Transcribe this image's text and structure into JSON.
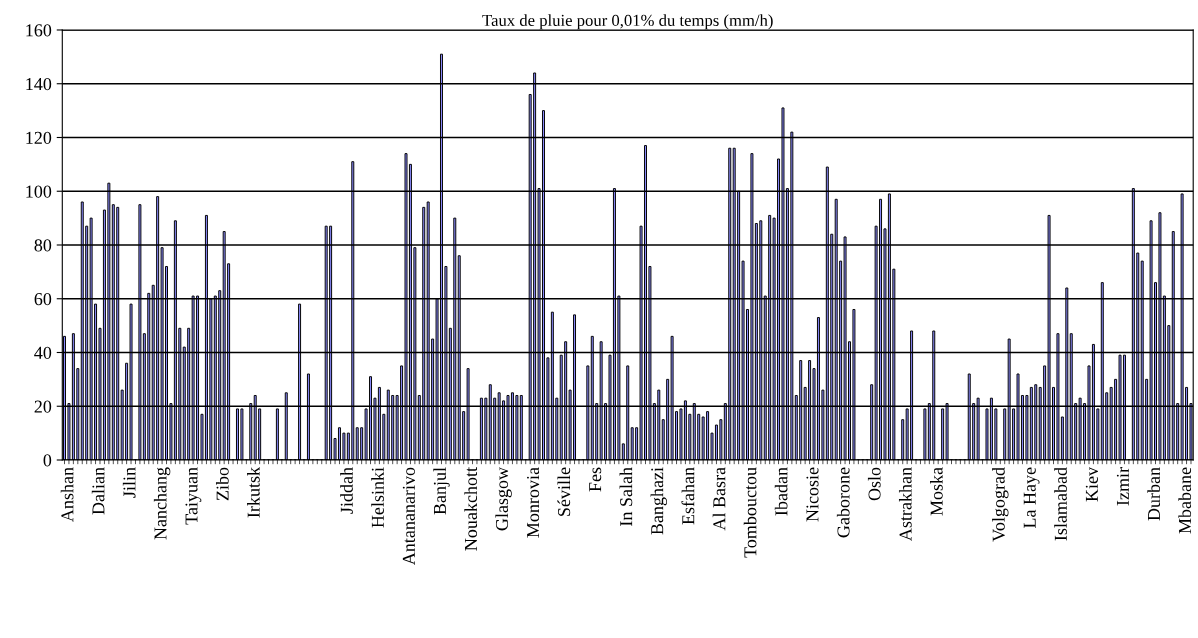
{
  "chart_data": {
    "type": "bar",
    "title": "Taux de pluie pour 0,01% du temps (mm/h)",
    "categories": [
      null,
      "Anshan",
      null,
      null,
      null,
      null,
      null,
      null,
      "Dalian",
      null,
      null,
      null,
      null,
      null,
      null,
      "Jilin",
      null,
      null,
      null,
      null,
      null,
      null,
      "Nanchang",
      null,
      null,
      null,
      null,
      null,
      null,
      "Taiyuan",
      null,
      null,
      null,
      null,
      null,
      null,
      "Zibo",
      null,
      null,
      null,
      null,
      null,
      null,
      "Irkutsk",
      null,
      null,
      null,
      null,
      null,
      null,
      null,
      null,
      null,
      null,
      null,
      null,
      null,
      null,
      null,
      null,
      null,
      null,
      null,
      null,
      "Jiddah",
      null,
      null,
      null,
      null,
      null,
      null,
      "Helsinki",
      null,
      null,
      null,
      null,
      null,
      null,
      "Antananarivo",
      null,
      null,
      null,
      null,
      null,
      null,
      "Banjul",
      null,
      null,
      null,
      null,
      null,
      null,
      "Nouakchott",
      null,
      null,
      null,
      null,
      null,
      null,
      "Glasgow",
      null,
      null,
      null,
      null,
      null,
      null,
      "Monrovia",
      null,
      null,
      null,
      null,
      null,
      null,
      "Séville",
      null,
      null,
      null,
      null,
      null,
      null,
      "Fes",
      null,
      null,
      null,
      null,
      null,
      null,
      "In Salah",
      null,
      null,
      null,
      null,
      null,
      null,
      "Banghazi",
      null,
      null,
      null,
      null,
      null,
      null,
      "Esfahan",
      null,
      null,
      null,
      null,
      null,
      null,
      "Al Basra",
      null,
      null,
      null,
      null,
      null,
      null,
      "Tombouctou",
      null,
      null,
      null,
      null,
      null,
      null,
      "Ibadan",
      null,
      null,
      null,
      null,
      null,
      null,
      "Nicosie",
      null,
      null,
      null,
      null,
      null,
      null,
      "Gaborone",
      null,
      null,
      null,
      null,
      null,
      null,
      "Oslo",
      null,
      null,
      null,
      null,
      null,
      null,
      "Astrakhan",
      null,
      null,
      null,
      null,
      null,
      null,
      "Moska",
      null,
      null,
      null,
      null,
      null,
      null,
      null,
      null,
      null,
      null,
      null,
      null,
      null,
      "Volgograd",
      null,
      null,
      null,
      null,
      null,
      null,
      "La Haye",
      null,
      null,
      null,
      null,
      null,
      null,
      "Islamabad",
      null,
      null,
      null,
      null,
      null,
      null,
      "Kiev",
      null,
      null,
      null,
      null,
      null,
      null,
      "Izmir",
      null,
      null,
      null,
      null,
      null,
      null,
      "Durban",
      null,
      null,
      null,
      null,
      null,
      null,
      "Mbabane",
      null
    ],
    "values": [
      46,
      21,
      47,
      34,
      96,
      87,
      90,
      58,
      49,
      93,
      103,
      95,
      94,
      26,
      36,
      58,
      0,
      95,
      47,
      62,
      65,
      98,
      79,
      72,
      21,
      89,
      49,
      42,
      49,
      61,
      61,
      17,
      91,
      60,
      61,
      63,
      85,
      73,
      0,
      19,
      19,
      0,
      21,
      24,
      19,
      0,
      0,
      0,
      19,
      0,
      25,
      0,
      0,
      58,
      0,
      32,
      0,
      0,
      0,
      87,
      87,
      8,
      12,
      10,
      10,
      111,
      12,
      12,
      19,
      31,
      23,
      27,
      17,
      26,
      24,
      24,
      35,
      114,
      110,
      79,
      24,
      94,
      96,
      45,
      60,
      151,
      72,
      49,
      90,
      76,
      18,
      34,
      0,
      0,
      23,
      23,
      28,
      23,
      25,
      22,
      24,
      25,
      24,
      24,
      0,
      136,
      144,
      101,
      130,
      38,
      55,
      23,
      39,
      44,
      26,
      54,
      0,
      0,
      35,
      46,
      21,
      44,
      21,
      39,
      101,
      61,
      6,
      35,
      12,
      12,
      87,
      117,
      72,
      21,
      26,
      15,
      30,
      46,
      18,
      19,
      22,
      17,
      21,
      17,
      16,
      18,
      10,
      13,
      15,
      21,
      116,
      116,
      100,
      74,
      56,
      114,
      88,
      89,
      61,
      91,
      90,
      112,
      131,
      101,
      122,
      24,
      37,
      27,
      37,
      34,
      53,
      26,
      109,
      84,
      97,
      74,
      83,
      44,
      56,
      0,
      0,
      0,
      28,
      87,
      97,
      86,
      99,
      71,
      0,
      15,
      19,
      48,
      0,
      0,
      19,
      21,
      48,
      0,
      19,
      21,
      0,
      0,
      0,
      0,
      32,
      21,
      23,
      0,
      19,
      23,
      19,
      0,
      19,
      45,
      19,
      32,
      24,
      24,
      27,
      28,
      27,
      35,
      91,
      27,
      47,
      16,
      64,
      47,
      21,
      23,
      21,
      35,
      43,
      19,
      66,
      25,
      27,
      30,
      39,
      39,
      0,
      101,
      77,
      74,
      30,
      89,
      66,
      92,
      61,
      50,
      85,
      21,
      99,
      27,
      21
    ],
    "color": "#8c8cff",
    "ylim": [
      0,
      160
    ],
    "yticks": [
      0,
      20,
      40,
      60,
      80,
      100,
      120,
      140,
      160
    ],
    "grid": "y",
    "legend": false
  }
}
